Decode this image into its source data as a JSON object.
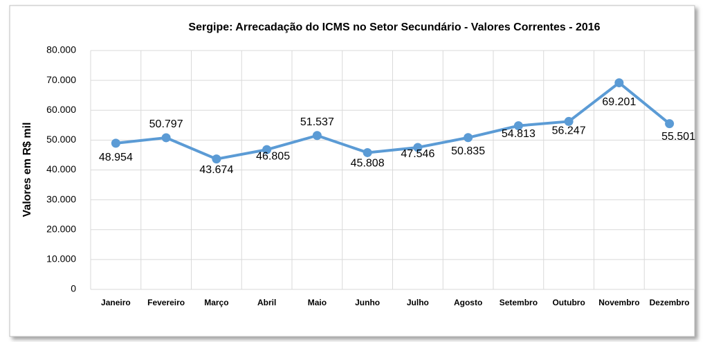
{
  "chart_data": {
    "type": "line",
    "title": "Sergipe: Arrecadação do ICMS no Setor Secundário - Valores Correntes - 2016",
    "y_label": "Valores em R$ mil",
    "categories": [
      "Janeiro",
      "Fevereiro",
      "Março",
      "Abril",
      "Maio",
      "Junho",
      "Julho",
      "Agosto",
      "Setembro",
      "Outubro",
      "Novembro",
      "Dezembro"
    ],
    "series": [
      {
        "name": "ICMS",
        "color": "#5b9bd5",
        "values": [
          48954,
          50797,
          43674,
          46805,
          51537,
          45808,
          47546,
          50835,
          54813,
          56247,
          69201,
          55501
        ],
        "value_labels": [
          "48.954",
          "50.797",
          "43.674",
          "46.805",
          "51.537",
          "45.808",
          "47.546",
          "50.835",
          "54.813",
          "56.247",
          "69.201",
          "55.501"
        ]
      }
    ],
    "ylim": [
      0,
      80000
    ],
    "yticks": [
      0,
      {
        "value": 10000,
        "label": "10.000"
      },
      {
        "value": 20000,
        "label": "20.000"
      },
      {
        "value": 30000,
        "label": "30.000"
      },
      {
        "value": 40000,
        "label": "40.000"
      },
      {
        "value": 50000,
        "label": "50.000"
      },
      {
        "value": 60000,
        "label": "60.000"
      },
      {
        "value": 70000,
        "label": "70.000"
      },
      {
        "value": 80000,
        "label": "80.000"
      }
    ],
    "grid": true
  }
}
